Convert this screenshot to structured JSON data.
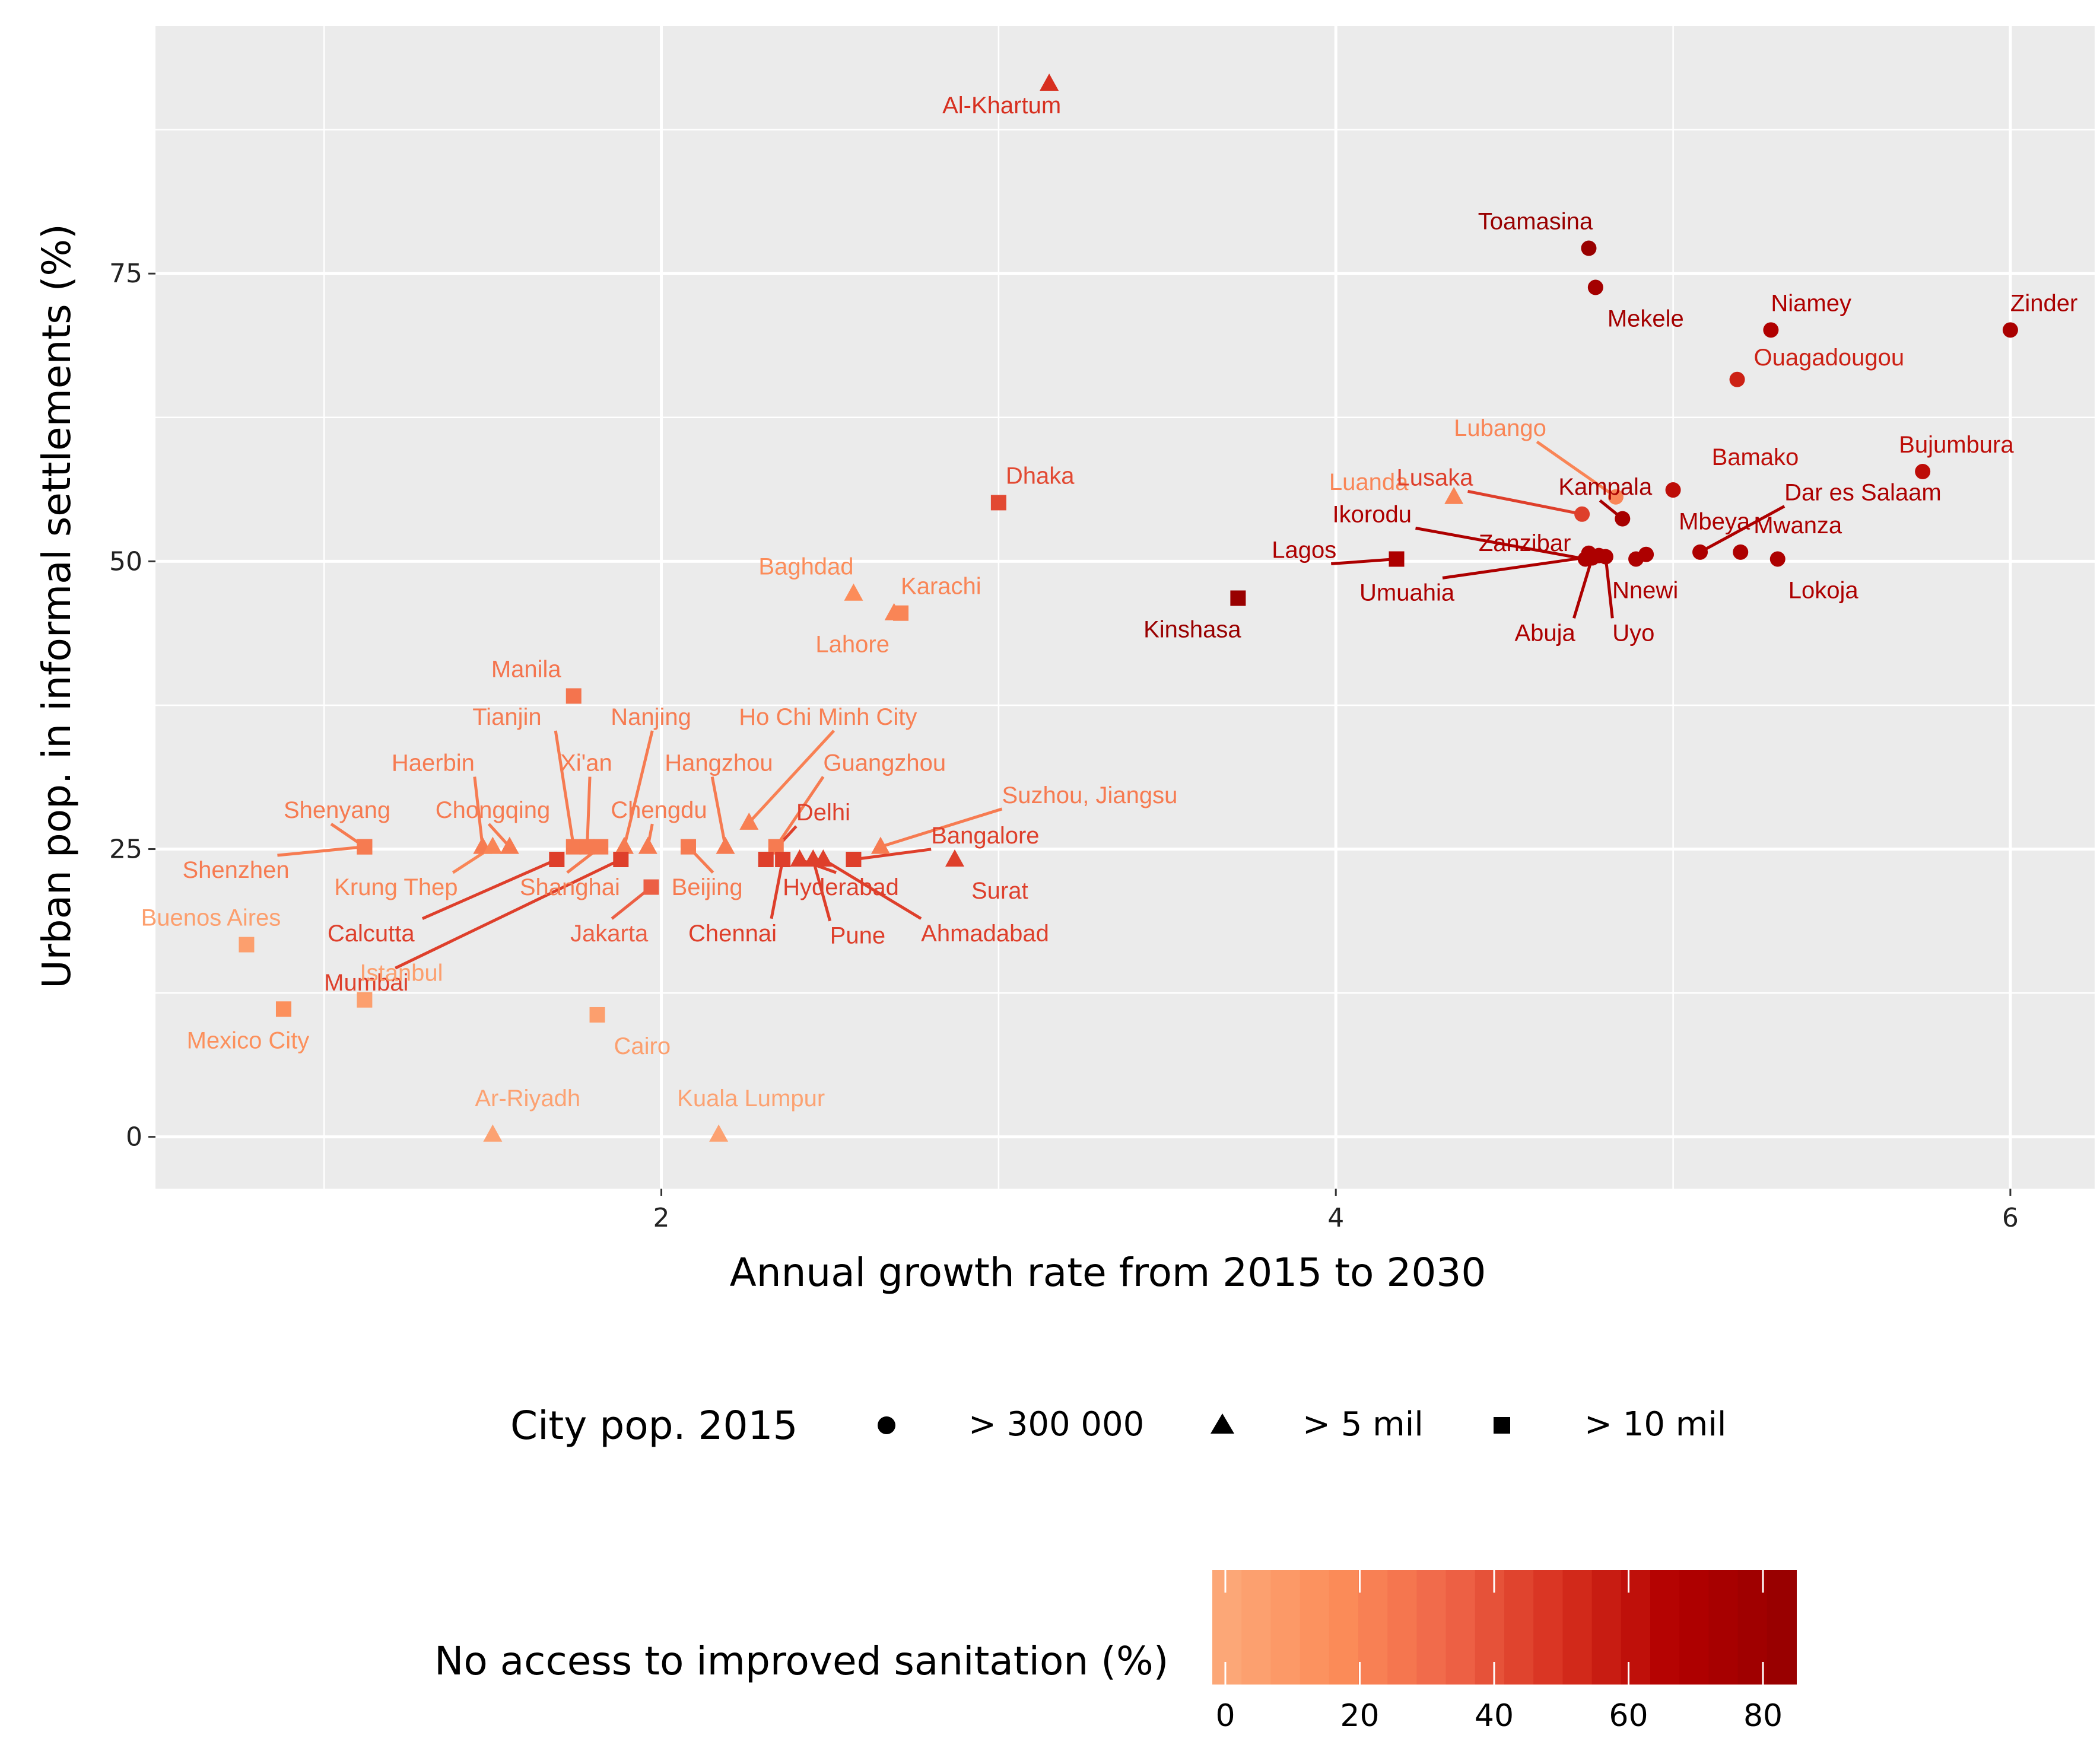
{
  "chart_data": {
    "type": "scatter",
    "xlabel": "Annual growth rate from 2015 to 2030",
    "ylabel": "Urban pop. in informal settlements (%)",
    "xlim": [
      0.5,
      6.25
    ],
    "ylim": [
      -4.5,
      96.5
    ],
    "xticks": [
      2,
      4,
      6
    ],
    "yticks": [
      0,
      25,
      50,
      75
    ],
    "grid": true,
    "background": "#EBEBEB",
    "shape_legend": {
      "title": "City pop. 2015",
      "items": [
        {
          "shape": "circle",
          "label": "> 300 000"
        },
        {
          "shape": "triangle",
          "label": "> 5 mil"
        },
        {
          "shape": "square",
          "label": "> 10 mil"
        }
      ]
    },
    "color_legend": {
      "title": "No access to improved sanitation (%)",
      "range": [
        0,
        83
      ],
      "ticks": [
        0,
        20,
        40,
        60,
        80
      ],
      "colors": [
        "#FCA777",
        "#FC8D59",
        "#EF6548",
        "#D7301F",
        "#B30000",
        "#990000"
      ]
    },
    "points": [
      {
        "city": "Al-Khartum",
        "x": 3.15,
        "y": 91.5,
        "shape": "triangle",
        "san": 50
      },
      {
        "city": "Toamasina",
        "x": 4.75,
        "y": 77.2,
        "shape": "circle",
        "san": 83
      },
      {
        "city": "Mekele",
        "x": 4.77,
        "y": 73.8,
        "shape": "circle",
        "san": 76
      },
      {
        "city": "Niamey",
        "x": 5.29,
        "y": 70.1,
        "shape": "circle",
        "san": 68
      },
      {
        "city": "Zinder",
        "x": 6.0,
        "y": 70.1,
        "shape": "circle",
        "san": 72
      },
      {
        "city": "Ouagadougou",
        "x": 5.19,
        "y": 65.8,
        "shape": "circle",
        "san": 55
      },
      {
        "city": "Bujumbura",
        "x": 5.74,
        "y": 57.8,
        "shape": "circle",
        "san": 62
      },
      {
        "city": "Bamako",
        "x": 5.0,
        "y": 56.2,
        "shape": "circle",
        "san": 62
      },
      {
        "city": "Lubango",
        "x": 4.83,
        "y": 55.6,
        "shape": "circle",
        "san": 20
      },
      {
        "city": "Luanda",
        "x": 4.35,
        "y": 55.6,
        "shape": "triangle",
        "san": 20
      },
      {
        "city": "Lusaka",
        "x": 4.73,
        "y": 54.1,
        "shape": "circle",
        "san": 45
      },
      {
        "city": "Kampala",
        "x": 4.85,
        "y": 53.7,
        "shape": "circle",
        "san": 74
      },
      {
        "city": "Mbeya",
        "x": 4.92,
        "y": 50.6,
        "shape": "circle",
        "san": 70
      },
      {
        "city": "Dar es Salaam",
        "x": 5.08,
        "y": 50.8,
        "shape": "circle",
        "san": 70
      },
      {
        "city": "Mwanza",
        "x": 5.2,
        "y": 50.8,
        "shape": "circle",
        "san": 70
      },
      {
        "city": "Lokoja",
        "x": 5.31,
        "y": 50.2,
        "shape": "circle",
        "san": 70
      },
      {
        "city": "Nnewi",
        "x": 4.89,
        "y": 50.2,
        "shape": "circle",
        "san": 70
      },
      {
        "city": "Zanzibar",
        "x": 4.75,
        "y": 50.7,
        "shape": "circle",
        "san": 70
      },
      {
        "city": "Ikorodu",
        "x": 4.74,
        "y": 50.2,
        "shape": "circle",
        "san": 70
      },
      {
        "city": "Umuahia",
        "x": 4.78,
        "y": 50.5,
        "shape": "circle",
        "san": 70
      },
      {
        "city": "Abuja",
        "x": 4.76,
        "y": 50.3,
        "shape": "circle",
        "san": 70
      },
      {
        "city": "Uyo",
        "x": 4.8,
        "y": 50.4,
        "shape": "circle",
        "san": 70
      },
      {
        "city": "Lagos",
        "x": 4.18,
        "y": 50.2,
        "shape": "square",
        "san": 70
      },
      {
        "city": "Kinshasa",
        "x": 3.71,
        "y": 46.8,
        "shape": "square",
        "san": 83
      },
      {
        "city": "Dhaka",
        "x": 3.0,
        "y": 55.1,
        "shape": "square",
        "san": 42
      },
      {
        "city": "Baghdad",
        "x": 2.57,
        "y": 47.2,
        "shape": "triangle",
        "san": 17
      },
      {
        "city": "Karachi",
        "x": 2.71,
        "y": 45.5,
        "shape": "square",
        "san": 20
      },
      {
        "city": "Lahore",
        "x": 2.69,
        "y": 45.5,
        "shape": "triangle",
        "san": 20
      },
      {
        "city": "Manila",
        "x": 1.74,
        "y": 38.3,
        "shape": "square",
        "san": 27
      },
      {
        "city": "Ho Chi Minh City",
        "x": 2.26,
        "y": 27.3,
        "shape": "triangle",
        "san": 22
      },
      {
        "city": "Shenyang",
        "x": 1.12,
        "y": 25.2,
        "shape": "square",
        "san": 24
      },
      {
        "city": "Shenzhen",
        "x": 1.12,
        "y": 25.2,
        "shape": "square",
        "san": 24
      },
      {
        "city": "Haerbin",
        "x": 1.47,
        "y": 25.2,
        "shape": "triangle",
        "san": 24
      },
      {
        "city": "Krung Thep",
        "x": 1.5,
        "y": 25.2,
        "shape": "triangle",
        "san": 20
      },
      {
        "city": "Chongqing",
        "x": 1.55,
        "y": 25.2,
        "shape": "triangle",
        "san": 24
      },
      {
        "city": "Tianjin",
        "x": 1.74,
        "y": 25.2,
        "shape": "square",
        "san": 24
      },
      {
        "city": "Xi'an",
        "x": 1.78,
        "y": 25.2,
        "shape": "square",
        "san": 24
      },
      {
        "city": "Shanghai",
        "x": 1.82,
        "y": 25.2,
        "shape": "square",
        "san": 24
      },
      {
        "city": "Nanjing",
        "x": 1.89,
        "y": 25.2,
        "shape": "triangle",
        "san": 24
      },
      {
        "city": "Chengdu",
        "x": 1.96,
        "y": 25.2,
        "shape": "triangle",
        "san": 24
      },
      {
        "city": "Beijing",
        "x": 2.08,
        "y": 25.2,
        "shape": "square",
        "san": 24
      },
      {
        "city": "Hangzhou",
        "x": 2.19,
        "y": 25.2,
        "shape": "triangle",
        "san": 24
      },
      {
        "city": "Guangzhou",
        "x": 2.34,
        "y": 25.2,
        "shape": "square",
        "san": 24
      },
      {
        "city": "Suzhou, Jiangsu",
        "x": 2.65,
        "y": 25.2,
        "shape": "triangle",
        "san": 24
      },
      {
        "city": "Calcutta",
        "x": 1.69,
        "y": 24.1,
        "shape": "square",
        "san": 45
      },
      {
        "city": "Mumbai",
        "x": 1.88,
        "y": 24.1,
        "shape": "square",
        "san": 45
      },
      {
        "city": "Jakarta",
        "x": 1.97,
        "y": 21.7,
        "shape": "square",
        "san": 35
      },
      {
        "city": "Delhi",
        "x": 2.31,
        "y": 24.1,
        "shape": "square",
        "san": 45
      },
      {
        "city": "Chennai",
        "x": 2.36,
        "y": 24.1,
        "shape": "square",
        "san": 45
      },
      {
        "city": "Hyderabad",
        "x": 2.41,
        "y": 24.1,
        "shape": "triangle",
        "san": 45
      },
      {
        "city": "Pune",
        "x": 2.45,
        "y": 24.1,
        "shape": "triangle",
        "san": 45
      },
      {
        "city": "Ahmadabad",
        "x": 2.48,
        "y": 24.1,
        "shape": "triangle",
        "san": 45
      },
      {
        "city": "Bangalore",
        "x": 2.57,
        "y": 24.1,
        "shape": "square",
        "san": 45
      },
      {
        "city": "Surat",
        "x": 2.87,
        "y": 24.1,
        "shape": "triangle",
        "san": 45
      },
      {
        "city": "Buenos Aires",
        "x": 0.77,
        "y": 16.7,
        "shape": "square",
        "san": 5
      },
      {
        "city": "Mexico City",
        "x": 0.88,
        "y": 11.1,
        "shape": "square",
        "san": 15
      },
      {
        "city": "Istanbul",
        "x": 1.12,
        "y": 11.9,
        "shape": "square",
        "san": 5
      },
      {
        "city": "Cairo",
        "x": 1.81,
        "y": 10.6,
        "shape": "square",
        "san": 5
      },
      {
        "city": "Ar-Riyadh",
        "x": 1.5,
        "y": 0.2,
        "shape": "triangle",
        "san": 3
      },
      {
        "city": "Kuala Lumpur",
        "x": 2.17,
        "y": 0.2,
        "shape": "triangle",
        "san": 3
      }
    ]
  }
}
